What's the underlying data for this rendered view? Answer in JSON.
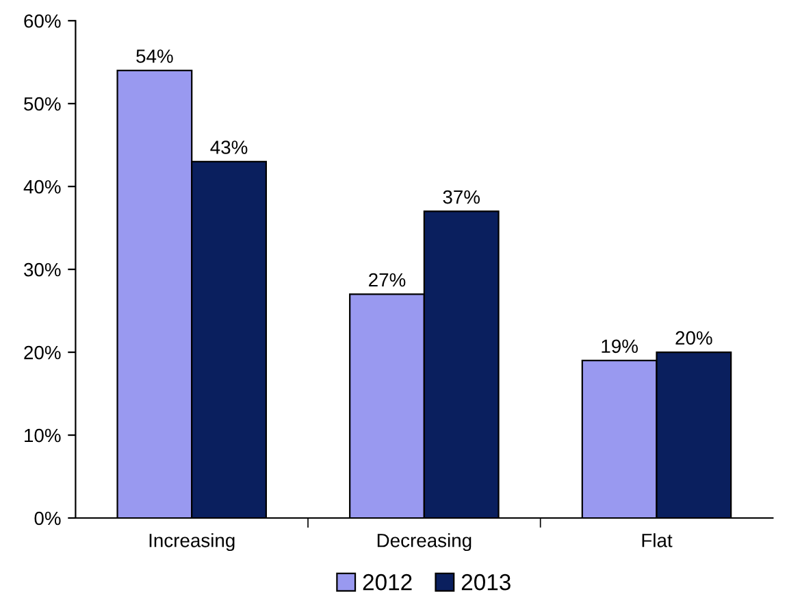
{
  "chart_data": {
    "type": "bar",
    "categories": [
      "Increasing",
      "Decreasing",
      "Flat"
    ],
    "series": [
      {
        "name": "2012",
        "color": "#9999f0",
        "values": [
          54,
          27,
          19
        ],
        "value_labels": [
          "54%",
          "27%",
          "19%"
        ]
      },
      {
        "name": "2013",
        "color": "#0a1f5e",
        "values": [
          43,
          37,
          20
        ],
        "value_labels": [
          "43%",
          "37%",
          "20%"
        ]
      }
    ],
    "ylim": [
      0,
      60
    ],
    "yticks": [
      {
        "value": 0,
        "label": "0%"
      },
      {
        "value": 10,
        "label": "10%"
      },
      {
        "value": 20,
        "label": "20%"
      },
      {
        "value": 30,
        "label": "30%"
      },
      {
        "value": 40,
        "label": "40%"
      },
      {
        "value": 50,
        "label": "50%"
      },
      {
        "value": 60,
        "label": "60%"
      }
    ],
    "grid": false,
    "legend": "bottom"
  }
}
